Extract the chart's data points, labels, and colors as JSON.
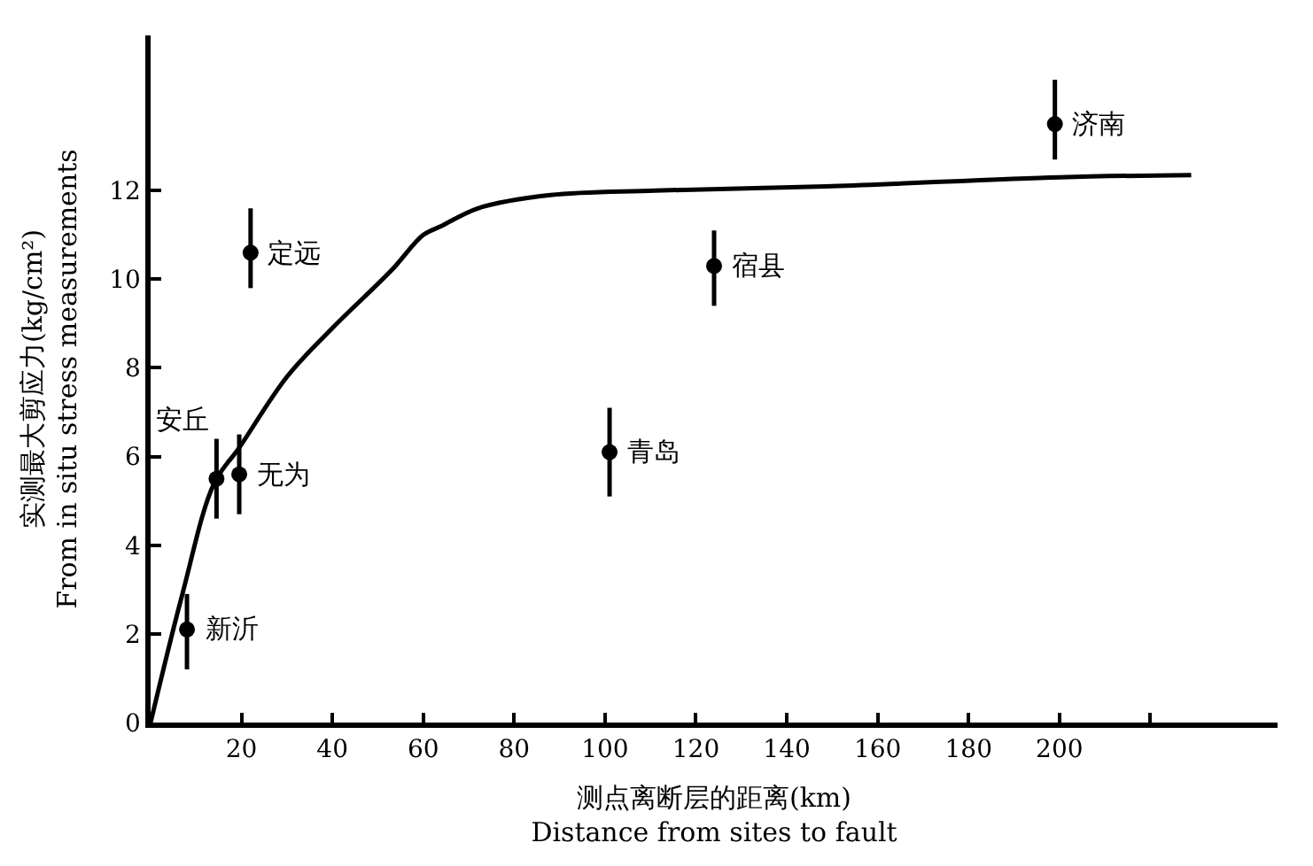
{
  "chart_data": {
    "type": "scatter",
    "xlabel": "测点离断层的距离(km)\nDistance from sites to fault",
    "ylabel": "实测最大剪应力(kg/cm²)\nFrom in situ stress measurements",
    "series": [
      {
        "color": "#000000",
        "marker": "circle",
        "x": [
          8,
          14.5,
          19.5,
          22,
          101,
          124,
          199
        ],
        "values": [
          2.1,
          5.5,
          5.6,
          10.6,
          6.1,
          10.3,
          13.5
        ],
        "errors": [
          [
            1.2,
            2.9
          ],
          [
            4.6,
            6.4
          ],
          [
            4.7,
            6.5
          ],
          [
            9.8,
            11.6
          ],
          [
            5.1,
            7.1
          ],
          [
            9.4,
            11.1
          ],
          [
            12.7,
            14.5
          ]
        ]
      },
      {
        "type": "line",
        "color": "#000000",
        "line_style": "solid",
        "marker": "none",
        "x": [
          0,
          7,
          14,
          19.5,
          30,
          40,
          53,
          60,
          64,
          72,
          88,
          111,
          150,
          200,
          229
        ],
        "values": [
          0,
          2.9,
          5.4,
          6.2,
          7.8,
          8.9,
          10.2,
          11.0,
          11.2,
          11.6,
          11.9,
          12.0,
          12.1,
          12.3,
          12.35
        ]
      }
    ],
    "annotations": [
      {
        "text": "新沂",
        "x": 8,
        "y": 2.1
      },
      {
        "text": "安丘",
        "x": 14.5,
        "y": 5.5
      },
      {
        "text": "无为",
        "x": 19.5,
        "y": 5.6
      },
      {
        "text": "定远",
        "x": 22,
        "y": 10.6
      },
      {
        "text": "青岛",
        "x": 101,
        "y": 6.1
      },
      {
        "text": "宿县",
        "x": 124,
        "y": 10.3
      },
      {
        "text": "济南",
        "x": 199,
        "y": 13.5
      }
    ],
    "xlim": [
      0,
      248
    ],
    "ylim": [
      0,
      15.5
    ],
    "xticks": [
      20,
      40,
      60,
      80,
      100,
      120,
      140,
      160,
      180,
      200,
      {
        "value": 220,
        "label": null
      }
    ],
    "yticks": [
      0,
      2,
      4,
      6,
      8,
      10,
      12
    ]
  }
}
